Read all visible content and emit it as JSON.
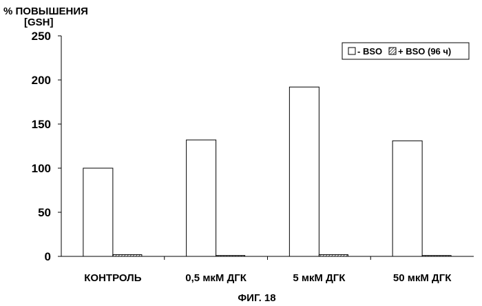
{
  "chart_data": {
    "type": "bar",
    "ylabel_line1": "% ПОВЫШЕНИЯ",
    "ylabel_line2": "[GSH]",
    "caption": "ФИГ. 18",
    "categories": [
      "КОНТРОЛЬ",
      "0,5 мкМ ДГК",
      "5 мкМ ДГК",
      "50 мкМ ДГК"
    ],
    "series": [
      {
        "name": "- BSO",
        "values": [
          100,
          132,
          192,
          131
        ],
        "pattern": "open"
      },
      {
        "name": "+ BSO (96 ч)",
        "values": [
          2,
          1,
          2,
          1
        ],
        "pattern": "hatched"
      }
    ],
    "yticks": [
      0,
      50,
      100,
      150,
      200,
      250
    ],
    "ylim": [
      0,
      250
    ],
    "legend_position": "top-right",
    "grid": false
  }
}
